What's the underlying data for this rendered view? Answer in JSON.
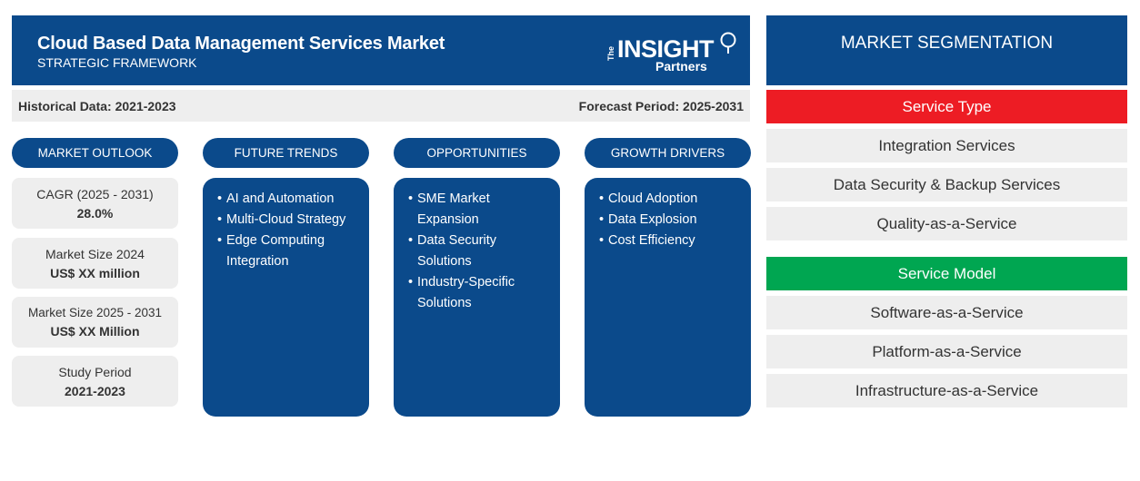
{
  "header": {
    "title": "Cloud Based Data Management Services Market",
    "subtitle": "STRATEGIC FRAMEWORK",
    "logo": {
      "the": "The",
      "insight": "INSIGHT",
      "partners": "Partners"
    }
  },
  "period": {
    "historical": "Historical Data: 2021-2023",
    "forecast": "Forecast Period: 2025-2031"
  },
  "columns": {
    "outlook": "MARKET OUTLOOK",
    "trends": "FUTURE TRENDS",
    "opportunities": "OPPORTUNITIES",
    "drivers": "GROWTH DRIVERS"
  },
  "outlook": [
    {
      "label": "CAGR (2025 - 2031)",
      "value": "28.0%"
    },
    {
      "label": "Market Size 2024",
      "value": "US$ XX million"
    },
    {
      "label": "Market Size 2025 - 2031",
      "value": "US$ XX Million"
    },
    {
      "label": "Study Period",
      "value": "2021-2023"
    }
  ],
  "trends": [
    "AI and Automation",
    "Multi-Cloud Strategy",
    "Edge Computing Integration"
  ],
  "opportunities": [
    "SME Market Expansion",
    "Data Security Solutions",
    "Industry-Specific Solutions"
  ],
  "drivers": [
    "Cloud Adoption",
    "Data Explosion",
    "Cost Efficiency"
  ],
  "segmentation": {
    "title": "MARKET SEGMENTATION",
    "service_type": {
      "label": "Service Type",
      "color": "#ed1c24",
      "items": [
        "Integration Services",
        "Data Security & Backup Services",
        "Quality-as-a-Service"
      ]
    },
    "service_model": {
      "label": "Service Model",
      "color": "#00a651",
      "items": [
        "Software-as-a-Service",
        "Platform-as-a-Service",
        "Infrastructure-as-a-Service"
      ]
    }
  }
}
